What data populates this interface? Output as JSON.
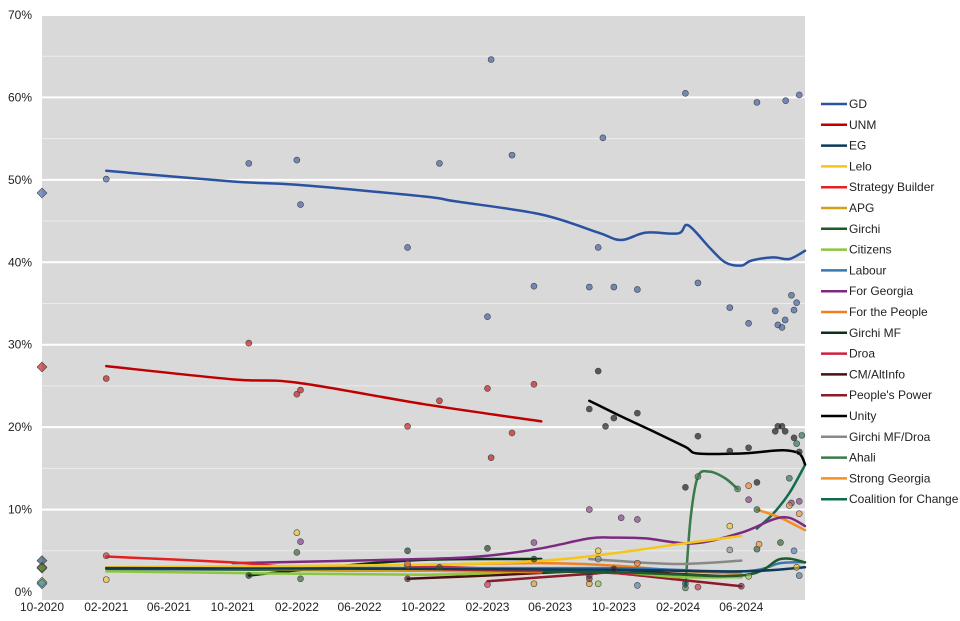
{
  "chart_data": {
    "type": "line",
    "title": "",
    "xlabel": "",
    "ylabel": "",
    "xlim": [
      "2020-10-01",
      "2024-10-01"
    ],
    "ylim": [
      0,
      70
    ],
    "grid": true,
    "legend_position": "right",
    "x_ticks": [
      "10-2020",
      "02-2021",
      "06-2021",
      "10-2021",
      "02-2022",
      "06-2022",
      "10-2022",
      "02-2023",
      "06-2023",
      "10-2023",
      "02-2024",
      "06-2024"
    ],
    "x_tick_dates": [
      "2020-10-01",
      "2021-02-01",
      "2021-06-01",
      "2021-10-01",
      "2022-02-01",
      "2022-06-01",
      "2022-10-01",
      "2023-02-01",
      "2023-06-01",
      "2023-10-01",
      "2024-02-01",
      "2024-06-01"
    ],
    "y_ticks": [
      "0%",
      "10%",
      "20%",
      "30%",
      "40%",
      "50%",
      "60%",
      "70%"
    ],
    "y_tick_values": [
      0,
      10,
      20,
      30,
      40,
      50,
      60,
      70
    ],
    "series": [
      {
        "name": "GD",
        "color": "#2b52a0",
        "line": [
          [
            "2021-02-01",
            51.1
          ],
          [
            "2021-10-01",
            49.8
          ],
          [
            "2022-02-01",
            49.4
          ],
          [
            "2022-10-01",
            48.0
          ],
          [
            "2022-12-01",
            47.4
          ],
          [
            "2023-05-15",
            45.8
          ],
          [
            "2023-09-01",
            43.6
          ],
          [
            "2023-10-15",
            42.7
          ],
          [
            "2023-12-01",
            43.6
          ],
          [
            "2024-02-01",
            43.5
          ],
          [
            "2024-02-20",
            44.5
          ],
          [
            "2024-04-01",
            41.8
          ],
          [
            "2024-05-01",
            40.0
          ],
          [
            "2024-06-01",
            39.6
          ],
          [
            "2024-06-20",
            40.2
          ],
          [
            "2024-08-01",
            40.6
          ],
          [
            "2024-09-01",
            40.4
          ],
          [
            "2024-10-01",
            41.4
          ]
        ],
        "points": [
          [
            "2020-10-01",
            48.4
          ],
          [
            "2021-02-01",
            50.1
          ],
          [
            "2021-11-01",
            52.0
          ],
          [
            "2022-02-01",
            52.4
          ],
          [
            "2022-02-08",
            47.0
          ],
          [
            "2022-09-01",
            41.8
          ],
          [
            "2022-11-01",
            52.0
          ],
          [
            "2023-02-08",
            64.6
          ],
          [
            "2023-02-01",
            33.4
          ],
          [
            "2023-03-20",
            53.0
          ],
          [
            "2023-05-01",
            37.1
          ],
          [
            "2023-08-15",
            37.0
          ],
          [
            "2023-09-01",
            41.8
          ],
          [
            "2023-09-10",
            55.1
          ],
          [
            "2023-10-01",
            37.0
          ],
          [
            "2023-11-15",
            36.7
          ],
          [
            "2024-02-15",
            60.5
          ],
          [
            "2024-03-10",
            37.5
          ],
          [
            "2024-05-10",
            34.5
          ],
          [
            "2024-06-15",
            32.6
          ],
          [
            "2024-07-01",
            59.4
          ],
          [
            "2024-08-05",
            34.1
          ],
          [
            "2024-08-10",
            32.4
          ],
          [
            "2024-08-18",
            32.1
          ],
          [
            "2024-08-25",
            59.6
          ],
          [
            "2024-08-24",
            33.0
          ],
          [
            "2024-09-05",
            36.0
          ],
          [
            "2024-09-10",
            34.2
          ],
          [
            "2024-09-15",
            35.1
          ],
          [
            "2024-09-20",
            60.3
          ]
        ]
      },
      {
        "name": "UNM",
        "color": "#c00000",
        "line": [
          [
            "2021-02-01",
            27.4
          ],
          [
            "2021-10-01",
            25.8
          ],
          [
            "2022-02-01",
            25.4
          ],
          [
            "2022-10-01",
            22.8
          ],
          [
            "2023-05-15",
            20.7
          ]
        ],
        "points": [
          [
            "2020-10-01",
            27.3
          ],
          [
            "2021-02-01",
            25.9
          ],
          [
            "2021-11-01",
            30.2
          ],
          [
            "2022-02-01",
            24.0
          ],
          [
            "2022-02-08",
            24.5
          ],
          [
            "2022-09-01",
            20.1
          ],
          [
            "2022-11-01",
            23.2
          ],
          [
            "2023-02-01",
            24.7
          ],
          [
            "2023-02-08",
            16.3
          ],
          [
            "2023-03-20",
            19.3
          ],
          [
            "2023-05-01",
            25.2
          ]
        ]
      },
      {
        "name": "EG",
        "color": "#0b3a5a",
        "line": [
          [
            "2021-02-01",
            2.9
          ],
          [
            "2022-10-01",
            2.8
          ],
          [
            "2023-10-01",
            2.7
          ],
          [
            "2024-06-01",
            2.5
          ],
          [
            "2024-10-01",
            3.0
          ]
        ],
        "points": [
          [
            "2020-10-01",
            3.8
          ],
          [
            "2023-08-15",
            2.0
          ],
          [
            "2024-02-15",
            1.0
          ]
        ]
      },
      {
        "name": "Lelo",
        "color": "#f5c518",
        "line": [
          [
            "2021-02-01",
            3.0
          ],
          [
            "2022-10-01",
            3.3
          ],
          [
            "2023-05-15",
            3.8
          ],
          [
            "2023-10-01",
            4.7
          ],
          [
            "2024-02-01",
            5.8
          ],
          [
            "2024-06-01",
            6.8
          ]
        ],
        "points": [
          [
            "2021-02-01",
            1.5
          ],
          [
            "2022-02-01",
            7.2
          ],
          [
            "2023-09-01",
            5.0
          ],
          [
            "2024-05-10",
            8.0
          ],
          [
            "2024-09-15",
            3.0
          ]
        ]
      },
      {
        "name": "Strategy Builder",
        "color": "#e52020",
        "line": [
          [
            "2021-02-01",
            4.3
          ],
          [
            "2021-10-01",
            3.6
          ],
          [
            "2022-02-01",
            3.0
          ],
          [
            "2022-10-01",
            2.8
          ],
          [
            "2023-05-15",
            2.5
          ]
        ],
        "points": [
          [
            "2021-02-01",
            4.4
          ],
          [
            "2022-09-01",
            3.2
          ]
        ]
      },
      {
        "name": "APG",
        "color": "#d4a017",
        "line": [
          [
            "2021-02-01",
            3.0
          ],
          [
            "2022-10-01",
            2.6
          ],
          [
            "2023-05-15",
            2.4
          ]
        ],
        "points": [
          [
            "2020-10-01",
            3.0
          ],
          [
            "2023-05-01",
            1.0
          ],
          [
            "2023-08-15",
            1.0
          ]
        ]
      },
      {
        "name": "Girchi",
        "color": "#1e5a2a",
        "line": [
          [
            "2021-02-01",
            2.8
          ],
          [
            "2022-10-01",
            2.6
          ],
          [
            "2023-10-01",
            2.4
          ],
          [
            "2024-06-01",
            2.0
          ],
          [
            "2024-08-15",
            4.0
          ],
          [
            "2024-10-01",
            3.6
          ]
        ],
        "points": [
          [
            "2020-10-01",
            2.9
          ],
          [
            "2022-02-01",
            4.8
          ],
          [
            "2022-02-08",
            1.6
          ],
          [
            "2022-11-01",
            3.0
          ],
          [
            "2024-07-01",
            5.2
          ],
          [
            "2024-08-15",
            6.0
          ]
        ]
      },
      {
        "name": "Citizens",
        "color": "#8cc63f",
        "line": [
          [
            "2021-02-01",
            2.5
          ],
          [
            "2022-10-01",
            2.1
          ],
          [
            "2023-05-15",
            2.6
          ],
          [
            "2023-10-01",
            2.5
          ],
          [
            "2024-02-01",
            1.8
          ],
          [
            "2024-06-01",
            1.8
          ]
        ],
        "points": [
          [
            "2020-10-01",
            1.2
          ],
          [
            "2023-09-01",
            1.0
          ],
          [
            "2024-06-15",
            1.9
          ]
        ]
      },
      {
        "name": "Labour",
        "color": "#3a78b0",
        "line": [
          [
            "2021-02-01",
            3.0
          ],
          [
            "2022-10-01",
            2.9
          ],
          [
            "2023-10-01",
            2.9
          ],
          [
            "2024-06-01",
            2.5
          ],
          [
            "2024-08-15",
            3.5
          ],
          [
            "2024-10-01",
            3.6
          ]
        ],
        "points": [
          [
            "2020-10-01",
            1.0
          ],
          [
            "2023-11-15",
            0.8
          ],
          [
            "2024-09-20",
            2.0
          ],
          [
            "2024-09-10",
            5.0
          ]
        ]
      },
      {
        "name": "For Georgia",
        "color": "#7b2a80",
        "line": [
          [
            "2021-10-01",
            3.5
          ],
          [
            "2022-10-01",
            4.0
          ],
          [
            "2023-02-01",
            4.4
          ],
          [
            "2023-05-15",
            5.3
          ],
          [
            "2023-08-15",
            6.5
          ],
          [
            "2023-10-01",
            6.6
          ],
          [
            "2023-12-01",
            6.5
          ],
          [
            "2024-03-01",
            5.9
          ],
          [
            "2024-06-01",
            7.2
          ],
          [
            "2024-08-01",
            8.8
          ],
          [
            "2024-09-01",
            9.0
          ],
          [
            "2024-10-01",
            8.0
          ]
        ],
        "points": [
          [
            "2022-02-08",
            6.1
          ],
          [
            "2023-05-01",
            6.0
          ],
          [
            "2023-08-15",
            10.0
          ],
          [
            "2023-10-15",
            9.0
          ],
          [
            "2023-11-15",
            8.8
          ],
          [
            "2024-06-15",
            11.2
          ],
          [
            "2024-09-05",
            10.8
          ],
          [
            "2024-09-20",
            11.0
          ]
        ]
      },
      {
        "name": "For the People",
        "color": "#f07f20",
        "line": [
          [
            "2022-10-01",
            3.3
          ],
          [
            "2023-05-15",
            3.5
          ],
          [
            "2023-10-01",
            3.2
          ],
          [
            "2024-02-01",
            2.6
          ],
          [
            "2024-06-01",
            2.2
          ]
        ],
        "points": [
          [
            "2022-09-01",
            3.4
          ],
          [
            "2023-11-15",
            3.5
          ],
          [
            "2024-06-15",
            12.9
          ]
        ]
      },
      {
        "name": "Girchi MF",
        "color": "#0a3018",
        "line": [
          [
            "2021-11-01",
            2.0
          ],
          [
            "2022-04-01",
            3.0
          ],
          [
            "2022-10-01",
            3.9
          ],
          [
            "2023-05-15",
            4.0
          ]
        ],
        "points": [
          [
            "2021-11-01",
            2.0
          ],
          [
            "2022-09-01",
            5.0
          ],
          [
            "2023-02-01",
            5.3
          ],
          [
            "2023-05-01",
            4.0
          ]
        ]
      },
      {
        "name": "Droa",
        "color": "#d02040",
        "line": [
          [
            "2022-09-01",
            3.2
          ],
          [
            "2023-05-15",
            2.6
          ],
          [
            "2023-10-01",
            2.3
          ],
          [
            "2024-02-01",
            1.8
          ]
        ],
        "points": [
          [
            "2023-02-01",
            0.9
          ],
          [
            "2024-03-10",
            0.6
          ]
        ]
      },
      {
        "name": "CM/AltInfo",
        "color": "#4a1010",
        "line": [
          [
            "2022-09-01",
            1.6
          ],
          [
            "2023-02-01",
            2.0
          ],
          [
            "2023-08-15",
            2.6
          ],
          [
            "2023-10-01",
            2.7
          ],
          [
            "2024-02-01",
            2.2
          ],
          [
            "2024-06-01",
            1.8
          ]
        ],
        "points": [
          [
            "2022-09-01",
            1.6
          ],
          [
            "2023-10-01",
            2.8
          ]
        ]
      },
      {
        "name": "People's Power",
        "color": "#8b1a2a",
        "line": [
          [
            "2023-02-01",
            1.3
          ],
          [
            "2023-08-15",
            2.2
          ],
          [
            "2023-10-01",
            2.3
          ],
          [
            "2024-02-01",
            1.5
          ],
          [
            "2024-06-01",
            0.7
          ]
        ],
        "points": [
          [
            "2023-08-15",
            1.6
          ],
          [
            "2024-06-01",
            0.7
          ]
        ]
      },
      {
        "name": "Unity",
        "color": "#000000",
        "line": [
          [
            "2023-08-15",
            23.2
          ],
          [
            "2023-10-15",
            21.3
          ],
          [
            "2023-12-15",
            19.5
          ],
          [
            "2024-02-15",
            17.6
          ],
          [
            "2024-03-10",
            16.8
          ],
          [
            "2024-06-01",
            16.8
          ],
          [
            "2024-07-10",
            17.0
          ],
          [
            "2024-08-20",
            17.2
          ],
          [
            "2024-09-20",
            16.8
          ],
          [
            "2024-10-01",
            15.5
          ]
        ],
        "points": [
          [
            "2023-09-01",
            26.8
          ],
          [
            "2023-08-15",
            22.2
          ],
          [
            "2023-09-15",
            20.1
          ],
          [
            "2023-10-01",
            21.1
          ],
          [
            "2023-11-15",
            21.7
          ],
          [
            "2024-02-15",
            12.7
          ],
          [
            "2024-03-10",
            18.9
          ],
          [
            "2024-05-10",
            17.1
          ],
          [
            "2024-06-15",
            17.5
          ],
          [
            "2024-07-01",
            13.3
          ],
          [
            "2024-08-05",
            19.5
          ],
          [
            "2024-08-10",
            20.1
          ],
          [
            "2024-08-18",
            20.1
          ],
          [
            "2024-08-24",
            19.5
          ],
          [
            "2024-09-10",
            18.7
          ],
          [
            "2024-09-20",
            17.0
          ]
        ]
      },
      {
        "name": "Girchi MF/Droa",
        "color": "#888888",
        "line": [
          [
            "2023-08-15",
            4.0
          ],
          [
            "2023-10-01",
            3.8
          ],
          [
            "2024-02-01",
            3.4
          ],
          [
            "2024-06-01",
            3.8
          ]
        ],
        "points": [
          [
            "2023-09-01",
            4.0
          ],
          [
            "2024-05-10",
            5.1
          ]
        ]
      },
      {
        "name": "Ahali",
        "color": "#3c7a4a",
        "line": [
          [
            "2024-02-15",
            0.6
          ],
          [
            "2024-02-25",
            9.0
          ],
          [
            "2024-03-10",
            14.0
          ],
          [
            "2024-04-01",
            14.6
          ],
          [
            "2024-05-01",
            13.8
          ],
          [
            "2024-05-25",
            12.5
          ]
        ],
        "points": [
          [
            "2024-02-15",
            0.5
          ],
          [
            "2024-03-10",
            14.0
          ],
          [
            "2024-05-25",
            12.5
          ]
        ]
      },
      {
        "name": "Strong Georgia",
        "color": "#f39020",
        "line": [
          [
            "2024-07-01",
            10.0
          ],
          [
            "2024-08-15",
            9.0
          ],
          [
            "2024-10-01",
            7.5
          ]
        ],
        "points": [
          [
            "2024-07-05",
            5.8
          ],
          [
            "2024-09-01",
            10.5
          ],
          [
            "2024-09-20",
            9.5
          ]
        ]
      },
      {
        "name": "Coalition for Change",
        "color": "#126a50",
        "line": [
          [
            "2024-07-01",
            7.7
          ],
          [
            "2024-08-01",
            9.5
          ],
          [
            "2024-09-01",
            12.0
          ],
          [
            "2024-10-01",
            15.4
          ]
        ],
        "points": [
          [
            "2024-07-01",
            10.0
          ],
          [
            "2024-09-01",
            13.8
          ],
          [
            "2024-09-15",
            18.0
          ],
          [
            "2024-09-25",
            19.0
          ]
        ]
      }
    ]
  }
}
